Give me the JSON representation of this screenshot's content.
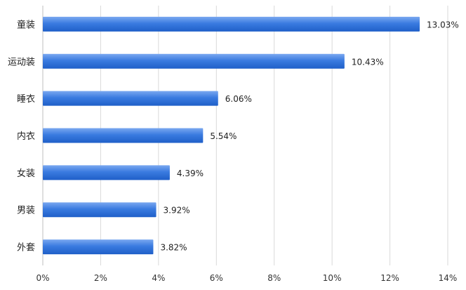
{
  "chart_data": {
    "type": "bar",
    "orientation": "horizontal",
    "categories": [
      "童装",
      "运动装",
      "睡衣",
      "内衣",
      "女装",
      "男装",
      "外套"
    ],
    "values": [
      13.03,
      10.43,
      6.06,
      5.54,
      4.39,
      3.92,
      3.82
    ],
    "data_labels": [
      "13.03%",
      "10.43%",
      "6.06%",
      "5.54%",
      "4.39%",
      "3.92%",
      "3.82%"
    ],
    "x_ticks": [
      "0%",
      "2%",
      "4%",
      "6%",
      "8%",
      "10%",
      "12%",
      "14%"
    ],
    "xlim": [
      0,
      14
    ],
    "grid": "vertical",
    "legend": "none",
    "colors": {
      "bar_top": "#7aa8f0",
      "bar_mid": "#3a7be0",
      "bar_bottom": "#1f5fc8",
      "grid": "#d9d9d9",
      "axis": "#bfbfbf"
    }
  }
}
